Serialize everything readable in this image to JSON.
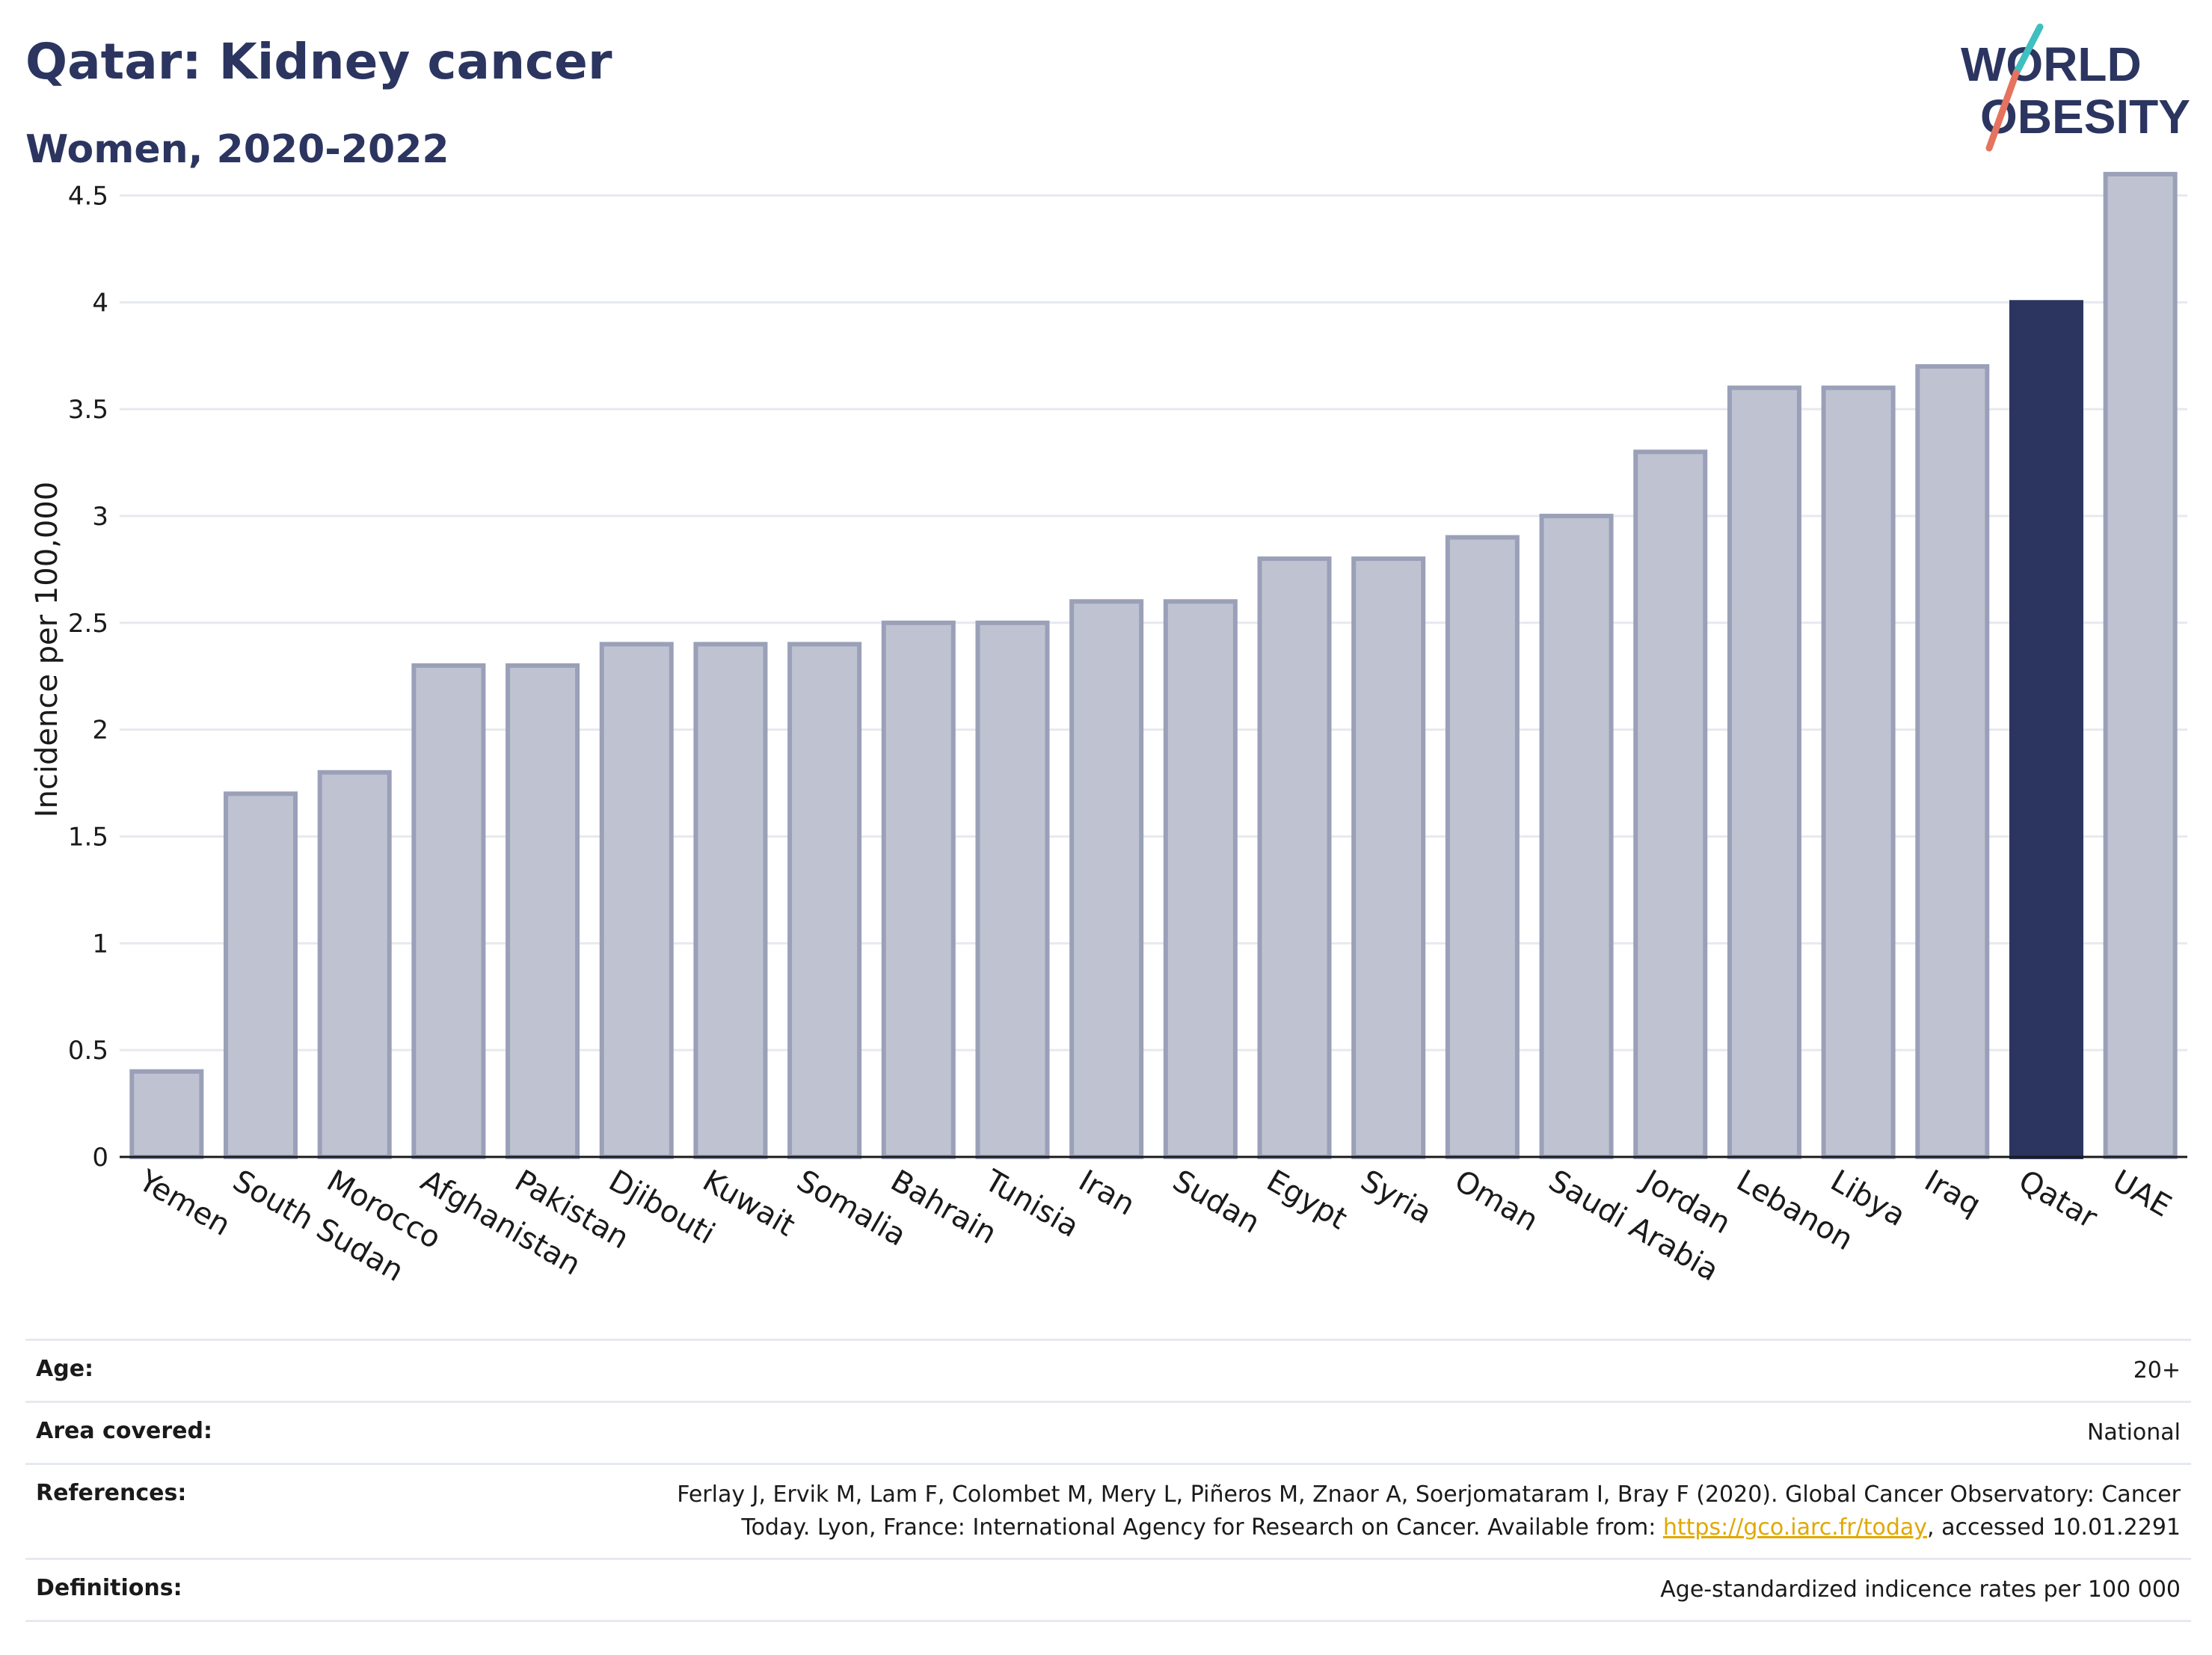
{
  "header": {
    "title": "Qatar: Kidney cancer",
    "subtitle": "Women, 2020-2022"
  },
  "logo": {
    "line1": "WORLD",
    "line2": "OBESITY",
    "accent_colors": [
      "#3fbfbf",
      "#e5735f"
    ]
  },
  "chart_data": {
    "type": "bar",
    "title": "Qatar: Kidney cancer",
    "subtitle": "Women, 2020-2022",
    "ylabel": "Incidence per 100,000",
    "xlabel": "",
    "ylim": [
      0,
      4.75
    ],
    "yticks": [
      0,
      0.5,
      1,
      1.5,
      2,
      2.5,
      3,
      3.5,
      4,
      4.5
    ],
    "ytick_labels": [
      "0",
      "0.5",
      "1",
      "1.5",
      "2",
      "2.5",
      "3",
      "3.5",
      "4",
      "4.5"
    ],
    "categories": [
      "Yemen",
      "South Sudan",
      "Morocco",
      "Afghanistan",
      "Pakistan",
      "Djibouti",
      "Kuwait",
      "Somalia",
      "Bahrain",
      "Tunisia",
      "Iran",
      "Sudan",
      "Egypt",
      "Syria",
      "Oman",
      "Saudi Arabia",
      "Jordan",
      "Lebanon",
      "Libya",
      "Iraq",
      "Qatar",
      "UAE"
    ],
    "values": [
      0.4,
      1.7,
      1.8,
      2.3,
      2.3,
      2.4,
      2.4,
      2.4,
      2.5,
      2.5,
      2.6,
      2.6,
      2.8,
      2.8,
      2.9,
      3.0,
      3.3,
      3.6,
      3.6,
      3.7,
      4.0,
      4.6
    ],
    "highlight": "Qatar",
    "grid": true,
    "legend": "none",
    "colors": {
      "bar": "#bfc3d1",
      "bar_edge": "#9aa0b8",
      "highlight": "#2b3560",
      "grid": "#e6e9ef"
    }
  },
  "meta": {
    "age": {
      "label": "Age:",
      "value": "20+"
    },
    "area": {
      "label": "Area covered:",
      "value": "National"
    },
    "references": {
      "label": "References:",
      "line1": "Ferlay J, Ervik M, Lam F, Colombet M, Mery L, Piñeros M, Znaor A, Soerjomataram I, Bray F (2020). Global Cancer Observatory: Cancer",
      "line2_prefix": "Today. Lyon, France: International Agency for Research on Cancer. Available from: ",
      "link": "https://gco.iarc.fr/today",
      "line2_suffix": ", accessed 10.01.2291"
    },
    "definitions": {
      "label": "Definitions:",
      "value": "Age-standardized indicence rates per 100 000"
    }
  }
}
